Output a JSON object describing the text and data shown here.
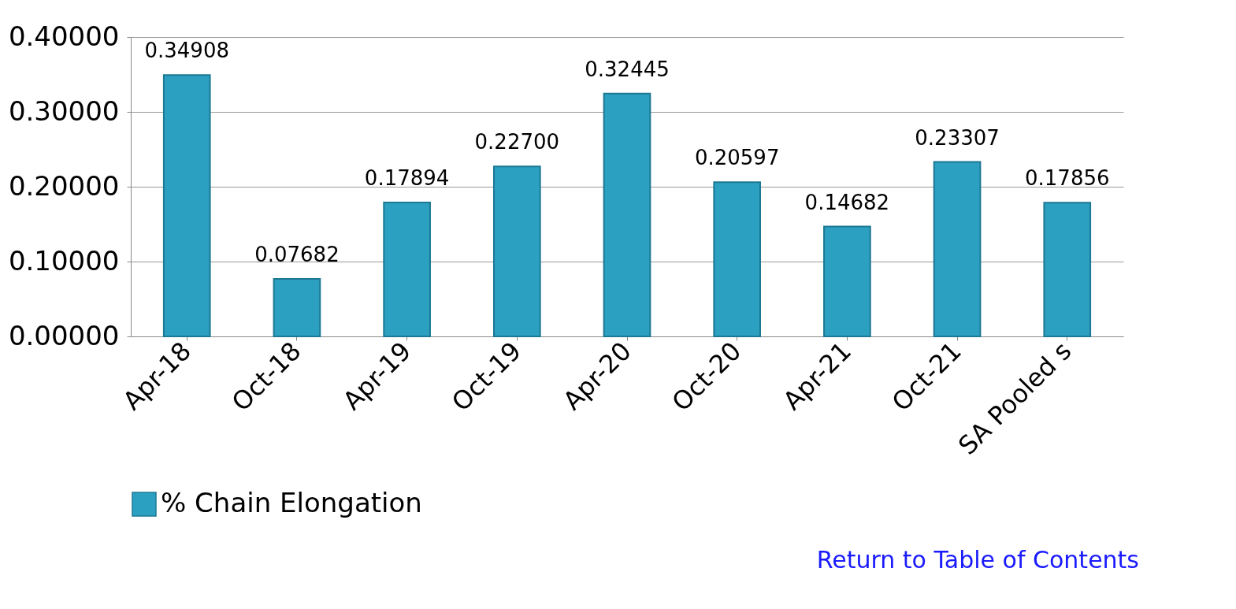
{
  "chart_data": {
    "type": "bar",
    "categories": [
      "Apr-18",
      "Oct-18",
      "Apr-19",
      "Oct-19",
      "Apr-20",
      "Oct-20",
      "Apr-21",
      "Oct-21",
      "SA Pooled s"
    ],
    "series": [
      {
        "name": "% Chain Elongation",
        "color": "#2ba0c0",
        "values": [
          0.34908,
          0.07682,
          0.17894,
          0.227,
          0.32445,
          0.20597,
          0.14682,
          0.23307,
          0.17856
        ],
        "value_labels": [
          "0.34908",
          "0.07682",
          "0.17894",
          "0.22700",
          "0.32445",
          "0.20597",
          "0.14682",
          "0.23307",
          "0.17856"
        ]
      }
    ],
    "ylim": [
      0,
      0.4
    ],
    "yticks": [
      {
        "value": 0,
        "label": "0.00000"
      },
      {
        "value": 0.1,
        "label": "0.10000"
      },
      {
        "value": 0.2,
        "label": "0.20000"
      },
      {
        "value": 0.3,
        "label": "0.30000"
      },
      {
        "value": 0.4,
        "label": "0.40000"
      }
    ],
    "grid": "y",
    "legend": "bottom",
    "annotations": [
      "Return to Table of Contents"
    ]
  }
}
